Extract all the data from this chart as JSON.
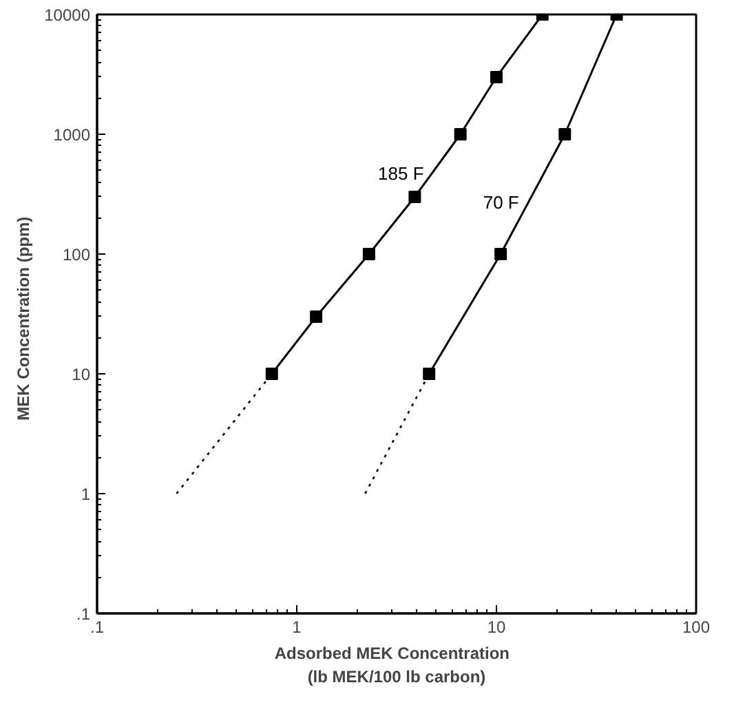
{
  "chart_data": {
    "type": "line",
    "xlabel": "Adsorbed  MEK  Concentration\n(lb MEK/100 lb carbon)",
    "ylabel": "MEK Concentration   (ppm)",
    "log": "xy",
    "xlim": [
      0.1,
      100
    ],
    "ylim": [
      0.1,
      10000
    ],
    "xticks": [
      {
        "value": 0.1,
        "label": ".1"
      },
      1,
      10,
      100
    ],
    "yticks": [
      {
        "value": 0.1,
        "label": ".1"
      },
      1,
      10,
      100,
      1000,
      10000
    ],
    "grid": false,
    "legend": false,
    "series": [
      {
        "name": "185 F",
        "color": "#000000",
        "marker": "square",
        "line_style": "solid",
        "x": [
          0.75,
          1.25,
          2.3,
          3.9,
          6.6,
          10,
          17
        ],
        "values": [
          10,
          30,
          100,
          300,
          1000,
          3000,
          10000
        ]
      },
      {
        "color": "#000000",
        "marker": "none",
        "line_style": "dotted",
        "x": [
          0.25,
          0.75
        ],
        "values": [
          1,
          10
        ]
      },
      {
        "name": "70 F",
        "color": "#000000",
        "marker": "square",
        "line_style": "solid",
        "x": [
          4.6,
          10.5,
          22,
          40
        ],
        "values": [
          10,
          100,
          1000,
          10000
        ]
      },
      {
        "color": "#000000",
        "marker": "none",
        "line_style": "dotted",
        "x": [
          2.2,
          4.6
        ],
        "values": [
          1,
          10
        ]
      }
    ]
  }
}
